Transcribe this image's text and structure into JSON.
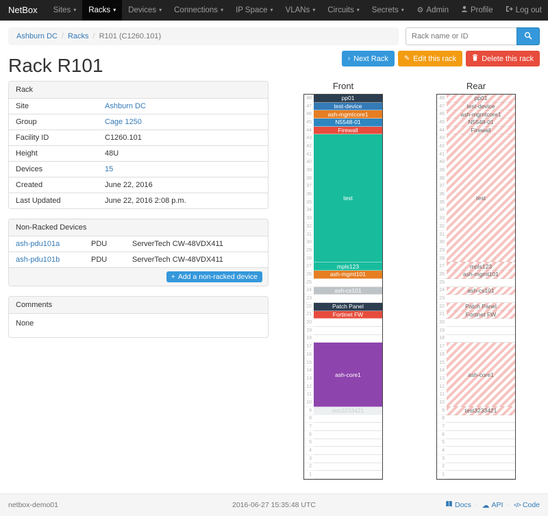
{
  "navbar": {
    "brand": "NetBox",
    "items": [
      {
        "label": "Sites"
      },
      {
        "label": "Racks"
      },
      {
        "label": "Devices"
      },
      {
        "label": "Connections"
      },
      {
        "label": "IP Space"
      },
      {
        "label": "VLANs"
      },
      {
        "label": "Circuits"
      },
      {
        "label": "Secrets"
      }
    ],
    "active_item": "Racks",
    "right": [
      {
        "label": "Admin",
        "icon": "gear-icon"
      },
      {
        "label": "Profile",
        "icon": "user-icon"
      },
      {
        "label": "Log out",
        "icon": "logout-icon"
      }
    ]
  },
  "breadcrumb": {
    "separator": "/",
    "items": [
      {
        "label": "Ashburn DC",
        "link": true
      },
      {
        "label": "Racks",
        "link": true
      },
      {
        "label": "R101 (C1260.101)",
        "link": false
      }
    ]
  },
  "search": {
    "placeholder": "Rack name or ID"
  },
  "actions": {
    "next": "Next Rack",
    "edit": "Edit this rack",
    "delete": "Delete this rack"
  },
  "page": {
    "title": "Rack R101"
  },
  "rack_panel": {
    "title": "Rack",
    "rows": [
      {
        "label": "Site",
        "value": "Ashburn DC",
        "link": true
      },
      {
        "label": "Group",
        "value": "Cage 1250",
        "link": true
      },
      {
        "label": "Facility ID",
        "value": "C1260.101",
        "link": false
      },
      {
        "label": "Height",
        "value": "48U",
        "link": false
      },
      {
        "label": "Devices",
        "value": "15",
        "link": true
      },
      {
        "label": "Created",
        "value": "June 22, 2016",
        "link": false
      },
      {
        "label": "Last Updated",
        "value": "June 22, 2016 2:08 p.m.",
        "link": false
      }
    ]
  },
  "non_racked": {
    "title": "Non-Racked Devices",
    "rows": [
      {
        "name": "ash-pdu101a",
        "role": "PDU",
        "model": "ServerTech CW-48VDX411"
      },
      {
        "name": "ash-pdu101b",
        "role": "PDU",
        "model": "ServerTech CW-48VDX411"
      }
    ],
    "add_button": "Add a non-racked device"
  },
  "comments": {
    "title": "Comments",
    "body": "None"
  },
  "elevations": {
    "front_title": "Front",
    "rear_title": "Rear",
    "height_units": 48,
    "units": [
      {
        "name": "pp01",
        "span": 1,
        "bg": "#2c3e50",
        "fg": "#ffffff"
      },
      {
        "name": "test-device",
        "span": 1,
        "bg": "#337ab7",
        "fg": "#ffffff"
      },
      {
        "name": "ash-mgmtcore1",
        "span": 1,
        "bg": "#e67e22",
        "fg": "#ffffff"
      },
      {
        "name": "N5548-01",
        "span": 1,
        "bg": "#2e86c1",
        "fg": "#ffffff"
      },
      {
        "name": "Firewall",
        "span": 1,
        "bg": "#e74c3c",
        "fg": "#ffffff"
      },
      {
        "name": "test",
        "span": 16,
        "bg": "#18bc9c",
        "fg": "#ffffff"
      },
      {
        "name": "mpls123",
        "span": 1,
        "bg": "#18bc9c",
        "fg": "#ffffff"
      },
      {
        "name": "ash-mgmt101",
        "span": 1,
        "bg": "#e67e22",
        "fg": "#ffffff"
      },
      {
        "name": null,
        "span": 1
      },
      {
        "name": "ash-cs101",
        "span": 1,
        "bg": "#bdc3c7",
        "fg": "#ffffff"
      },
      {
        "name": null,
        "span": 1
      },
      {
        "name": "Patch Panel",
        "span": 1,
        "bg": "#2c3e50",
        "fg": "#ffffff"
      },
      {
        "name": "Fortinet FW",
        "span": 1,
        "bg": "#e74c3c",
        "fg": "#ffffff"
      },
      {
        "name": null,
        "span": 3
      },
      {
        "name": "ash-core1",
        "span": 8,
        "bg": "#8e44ad",
        "fg": "#ffffff"
      },
      {
        "name": "test3233421",
        "span": 1,
        "bg": "#ecf0f1",
        "fg": "#c9d1d3"
      },
      {
        "name": null,
        "span": 8
      }
    ]
  },
  "footer": {
    "hostname": "netbox-demo01",
    "timestamp": "2016-06-27 15:35:48 UTC",
    "separator": "·",
    "links": [
      {
        "label": "Docs",
        "icon": "book-icon"
      },
      {
        "label": "API",
        "icon": "cloud-icon"
      },
      {
        "label": "Code",
        "icon": "code-icon"
      }
    ]
  }
}
